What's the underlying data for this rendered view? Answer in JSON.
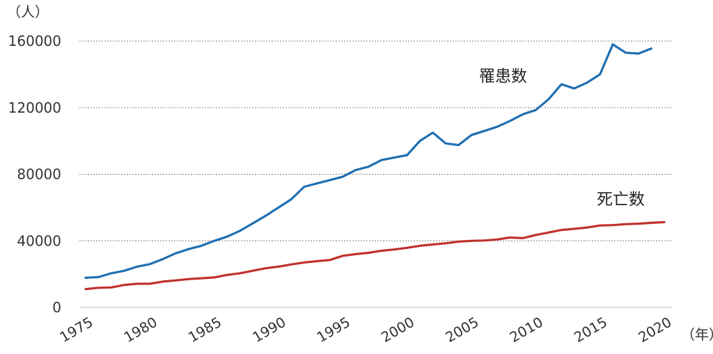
{
  "chart_data": {
    "type": "line",
    "y_unit_label": "（人）",
    "x_unit_label": "（年）",
    "ylim": [
      0,
      160000
    ],
    "y_ticks": [
      "0",
      "40000",
      "80000",
      "120000",
      "160000"
    ],
    "x_tick_labels": [
      "1975",
      "1980",
      "1985",
      "1990",
      "1995",
      "2000",
      "2005",
      "2010",
      "2015",
      "2020"
    ],
    "grid": "horizontal dotted",
    "x": [
      1975,
      1976,
      1977,
      1978,
      1979,
      1980,
      1981,
      1982,
      1983,
      1984,
      1985,
      1986,
      1987,
      1988,
      1989,
      1990,
      1991,
      1992,
      1993,
      1994,
      1995,
      1996,
      1997,
      1998,
      1999,
      2000,
      2001,
      2002,
      2003,
      2004,
      2005,
      2006,
      2007,
      2008,
      2009,
      2010,
      2011,
      2012,
      2013,
      2014,
      2015,
      2016,
      2017,
      2018,
      2019,
      2020
    ],
    "series": [
      {
        "name": "罹患数",
        "color": "#1f6fb2",
        "values": [
          17800,
          18200,
          20500,
          22000,
          24500,
          26000,
          29000,
          32500,
          35000,
          37000,
          40000,
          42500,
          46000,
          50500,
          55000,
          60000,
          65000,
          72500,
          74500,
          76500,
          78500,
          82500,
          84500,
          88500,
          90000,
          91500,
          100000,
          105000,
          98500,
          97500,
          103500,
          106000,
          108500,
          112000,
          116000,
          118500,
          125000,
          134000,
          131500,
          135000,
          140000,
          158000,
          153000,
          152500,
          155500,
          null
        ]
      },
      {
        "name": "死亡数",
        "color": "#c0312b",
        "values": [
          11000,
          11800,
          12000,
          13500,
          14200,
          14200,
          15500,
          16200,
          17000,
          17500,
          18000,
          19500,
          20500,
          22000,
          23500,
          24500,
          25800,
          27000,
          27800,
          28500,
          31000,
          32000,
          32800,
          34000,
          34800,
          35800,
          37000,
          37800,
          38500,
          39500,
          40000,
          40200,
          40800,
          42000,
          41600,
          43500,
          45000,
          46500,
          47200,
          48000,
          49200,
          49400,
          50000,
          50300,
          50800,
          51200
        ]
      }
    ]
  }
}
